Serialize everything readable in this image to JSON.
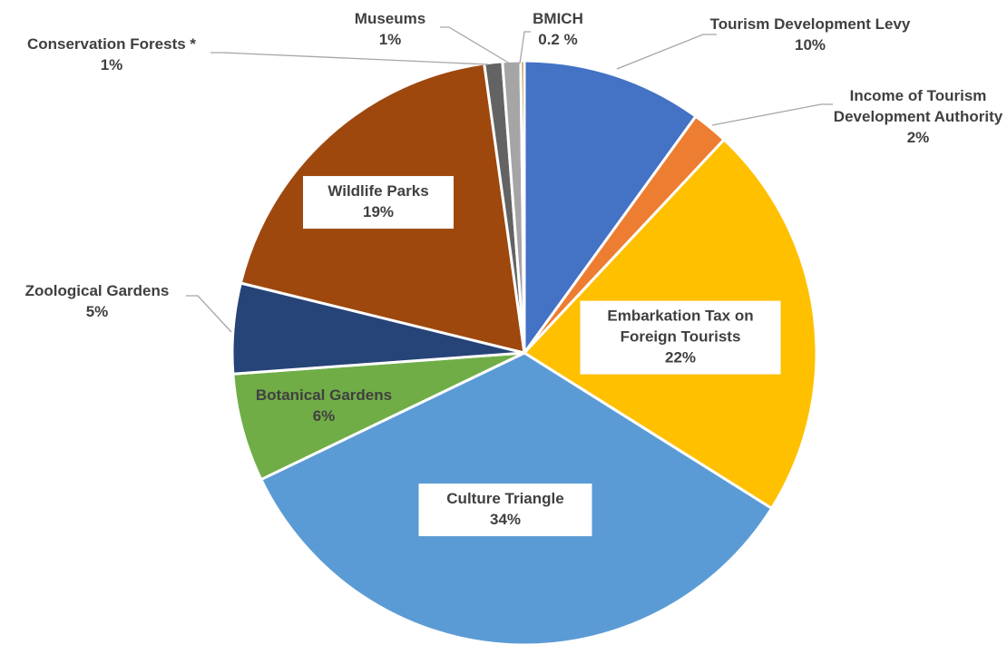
{
  "chart_data": {
    "type": "pie",
    "categories": [
      "Tourism Development Levy",
      "Income of Tourism Development Authority",
      "Embarkation Tax on Foreign Tourists",
      "Culture Triangle",
      "Botanical Gardens",
      "Zoological Gardens",
      "Wildlife Parks",
      "Conservation Forests *",
      "Museums",
      "BMICH"
    ],
    "values": [
      10,
      2,
      22,
      34,
      6,
      5,
      19,
      1,
      1,
      0.2
    ],
    "value_labels": [
      "10%",
      "2%",
      "22%",
      "34%",
      "6%",
      "5%",
      "19%",
      "1%",
      "1%",
      "0.2 %"
    ],
    "colors": [
      "#4472c4",
      "#ed7d31",
      "#ffc000",
      "#5b9bd5",
      "#70ad47",
      "#264478",
      "#9e480e",
      "#636363",
      "#a5a5a5",
      "#997300"
    ]
  }
}
